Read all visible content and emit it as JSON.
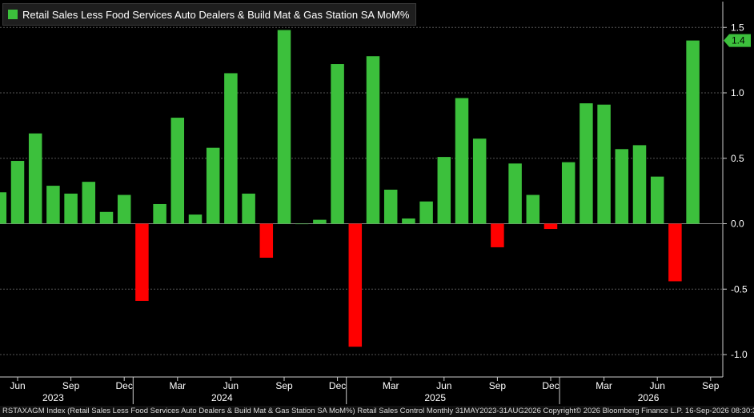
{
  "colors": {
    "positive": "#3cc03c",
    "negative": "#ff0000",
    "grid": "#555555",
    "text": "#ffffff",
    "background": "#000000"
  },
  "chart_data": {
    "type": "bar",
    "title": "Retail Sales Less Food Services Auto Dealers & Build Mat & Gas Station SA MoM%",
    "xlabel": "",
    "ylabel": "",
    "ylim": [
      -1.15,
      1.7
    ],
    "yticks": [
      "1.5",
      "1.0",
      "0.5",
      "0.0",
      "-0.5",
      "-1.0"
    ],
    "ytick_values": [
      1.5,
      1.0,
      0.5,
      0.0,
      -0.5,
      -1.0
    ],
    "last_value_label": "1.4",
    "month_ticks": [
      {
        "label": "Jun",
        "index": 1
      },
      {
        "label": "Sep",
        "index": 4
      },
      {
        "label": "Dec",
        "index": 7
      },
      {
        "label": "Mar",
        "index": 10
      },
      {
        "label": "Jun",
        "index": 13
      },
      {
        "label": "Sep",
        "index": 16
      },
      {
        "label": "Dec",
        "index": 19
      },
      {
        "label": "Mar",
        "index": 22
      },
      {
        "label": "Jun",
        "index": 25
      },
      {
        "label": "Sep",
        "index": 28
      },
      {
        "label": "Dec",
        "index": 31
      },
      {
        "label": "Mar",
        "index": 34
      },
      {
        "label": "Jun",
        "index": 37
      },
      {
        "label": "Sep",
        "index": 40
      }
    ],
    "year_ticks": [
      {
        "label": "2023",
        "index": 3
      },
      {
        "label": "2024",
        "index": 12.5
      },
      {
        "label": "2025",
        "index": 24.5
      },
      {
        "label": "2026",
        "index": 36.5
      }
    ],
    "year_dividers": [
      7.5,
      19.5,
      31.5
    ],
    "categories": [
      "May 2023",
      "Jun 2023",
      "Jul 2023",
      "Aug 2023",
      "Sep 2023",
      "Oct 2023",
      "Nov 2023",
      "Dec 2023",
      "Jan 2024",
      "Feb 2024",
      "Mar 2024",
      "Apr 2024",
      "May 2024",
      "Jun 2024",
      "Jul 2024",
      "Aug 2024",
      "Sep 2024",
      "Oct 2024",
      "Nov 2024",
      "Dec 2024",
      "Jan 2025",
      "Feb 2025",
      "Mar 2025",
      "Apr 2025",
      "May 2025",
      "Jun 2025",
      "Jul 2025",
      "Aug 2025",
      "Sep 2025",
      "Oct 2025",
      "Nov 2025",
      "Dec 2025",
      "Jan 2026",
      "Feb 2026",
      "Mar 2026",
      "Apr 2026",
      "May 2026",
      "Jun 2026",
      "Jul 2026",
      "Aug 2026"
    ],
    "series": [
      {
        "values": [
          0.24,
          0.48,
          0.69,
          0.29,
          0.23,
          0.32,
          0.09,
          0.22,
          -0.59,
          0.15,
          0.81,
          0.07,
          0.58,
          1.15,
          0.23,
          -0.26,
          1.48,
          0.0,
          0.03,
          1.22,
          -0.94,
          1.28,
          0.26,
          0.04,
          0.17,
          0.51,
          0.96,
          0.65,
          -0.18,
          0.46,
          0.22,
          -0.04,
          0.47,
          0.92,
          0.91,
          0.57,
          0.6,
          0.36,
          -0.44,
          1.4
        ]
      }
    ]
  },
  "footer_text": "RSTAXAGM Index (Retail Sales Less Food Services Auto Dealers & Build Mat & Gas Station SA MoM%) Retail Sales Control Monthly 31MAY2023-31AUG2026 Copyright© 2026 Bloomberg Finance L.P.  16-Sep-2026 08:30:37"
}
